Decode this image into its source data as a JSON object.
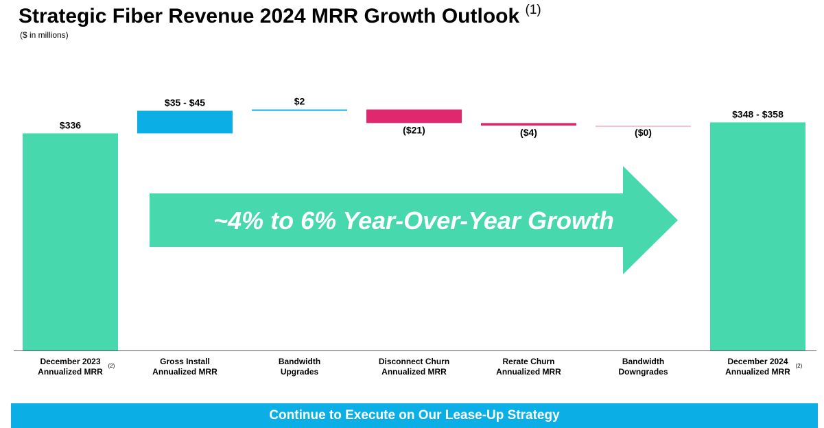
{
  "title": "Strategic Fiber Revenue 2024 MRR Growth Outlook",
  "title_footnote": "(1)",
  "subtitle": "($ in millions)",
  "growth_arrow_text": "~4% to 6% Year-Over-Year Growth",
  "banner_text": "Continue to Execute on Our Lease-Up Strategy",
  "colors": {
    "total": "#48d8ae",
    "increase": "#0bafe5",
    "decrease": "#e0286e",
    "decrease_light": "#f4c3d2",
    "arrow": "#48d8ae",
    "banner": "#0bafe5"
  },
  "chart_data": {
    "type": "bar",
    "subtype": "waterfall",
    "title": "Strategic Fiber Revenue 2024 MRR Growth Outlook",
    "ylabel": "($ in millions)",
    "ylim": [
      0,
      380
    ],
    "bars": [
      {
        "category": "December 2023 Annualized MRR",
        "line1": "December 2023",
        "line2": "Annualized MRR",
        "footnote": "(2)",
        "kind": "total",
        "start": 0,
        "end": 336,
        "label": "$336"
      },
      {
        "category": "Gross Install Annualized MRR",
        "line1": "Gross Install",
        "line2": "Annualized MRR",
        "footnote": "",
        "kind": "increase",
        "start": 336,
        "end": 371,
        "label": "$35 - $45"
      },
      {
        "category": "Bandwidth Upgrades",
        "line1": "Bandwidth",
        "line2": "Upgrades",
        "footnote": "",
        "kind": "increase",
        "start": 371,
        "end": 373,
        "label": "$2"
      },
      {
        "category": "Disconnect Churn Annualized MRR",
        "line1": "Disconnect Churn",
        "line2": "Annualized MRR",
        "footnote": "",
        "kind": "decrease",
        "start": 373,
        "end": 352,
        "label": "($21)"
      },
      {
        "category": "Rerate Churn Annualized MRR",
        "line1": "Rerate Churn",
        "line2": "Annualized MRR",
        "footnote": "",
        "kind": "decrease",
        "start": 352,
        "end": 348,
        "label": "($4)"
      },
      {
        "category": "Bandwidth Downgrades",
        "line1": "Bandwidth",
        "line2": "Downgrades",
        "footnote": "",
        "kind": "decrease_light",
        "start": 348,
        "end": 348,
        "label": "($0)"
      },
      {
        "category": "December 2024 Annualized MRR",
        "line1": "December 2024",
        "line2": "Annualized MRR",
        "footnote": "(2)",
        "kind": "total",
        "start": 0,
        "end": 353,
        "label": "$348 - $358"
      }
    ]
  }
}
